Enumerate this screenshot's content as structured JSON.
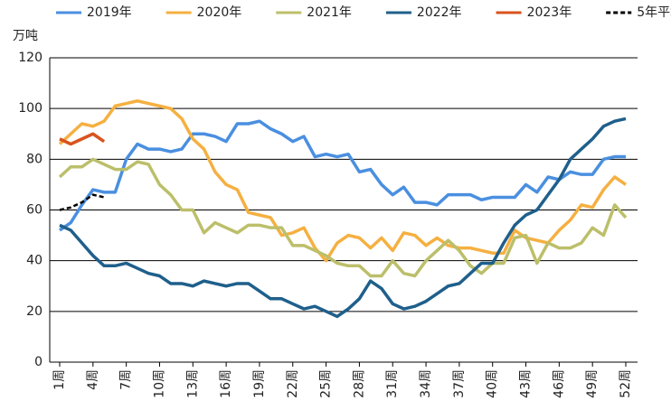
{
  "chart_data": {
    "type": "line",
    "y_label": "万吨",
    "categories": [
      "1周",
      null,
      null,
      "4周",
      null,
      null,
      "7周",
      null,
      null,
      "10周",
      null,
      null,
      "13周",
      null,
      null,
      "16周",
      null,
      null,
      "19周",
      null,
      null,
      "22周",
      null,
      null,
      "25周",
      null,
      null,
      "28周",
      null,
      null,
      "31周",
      null,
      null,
      "34周",
      null,
      null,
      "37周",
      null,
      null,
      "40周",
      null,
      null,
      "43周",
      null,
      null,
      "46周",
      null,
      null,
      "49周",
      null,
      null,
      "52周"
    ],
    "ylim": [
      0,
      120
    ],
    "yticks": [
      0,
      20,
      40,
      60,
      80,
      100,
      120
    ],
    "grid": true,
    "legend": "top",
    "series": [
      {
        "name": "2019年",
        "color": "#4a8fe0",
        "values": [
          52,
          55,
          62,
          68,
          67,
          67,
          80,
          86,
          84,
          84,
          83,
          84,
          90,
          90,
          89,
          87,
          94,
          94,
          95,
          92,
          90,
          87,
          89,
          81,
          82,
          81,
          82,
          75,
          76,
          70,
          66,
          69,
          63,
          63,
          62,
          66,
          66,
          66,
          64,
          65,
          65,
          65,
          70,
          67,
          73,
          72,
          75,
          74,
          74,
          80,
          81,
          81
        ]
      },
      {
        "name": "2020年",
        "color": "#f5b041",
        "values": [
          86,
          90,
          94,
          93,
          95,
          101,
          102,
          103,
          102,
          101,
          100,
          96,
          88,
          84,
          75,
          70,
          68,
          59,
          58,
          57,
          50,
          51,
          53,
          45,
          40,
          47,
          50,
          49,
          45,
          49,
          44,
          51,
          50,
          46,
          49,
          46,
          45,
          45,
          44,
          43,
          43,
          52,
          49,
          48,
          47,
          52,
          56,
          62,
          61,
          68,
          73,
          70
        ]
      },
      {
        "name": "2021年",
        "color": "#bcbf6a",
        "values": [
          73,
          77,
          77,
          80,
          78,
          76,
          76,
          79,
          78,
          70,
          66,
          60,
          60,
          51,
          55,
          53,
          51,
          54,
          54,
          53,
          53,
          46,
          46,
          44,
          42,
          39,
          38,
          38,
          34,
          34,
          40,
          35,
          34,
          40,
          44,
          48,
          44,
          38,
          35,
          39,
          39,
          49,
          50,
          39,
          47,
          45,
          45,
          47,
          53,
          50,
          62,
          57
        ]
      },
      {
        "name": "2022年",
        "color": "#1f5f8b",
        "values": [
          54,
          52,
          47,
          42,
          38,
          38,
          39,
          37,
          35,
          34,
          31,
          31,
          30,
          32,
          31,
          30,
          31,
          31,
          28,
          25,
          25,
          23,
          21,
          22,
          20,
          18,
          21,
          25,
          32,
          29,
          23,
          21,
          22,
          24,
          27,
          30,
          31,
          35,
          39,
          39,
          47,
          54,
          58,
          60,
          66,
          72,
          80,
          84,
          88,
          93,
          95,
          96
        ]
      },
      {
        "name": "2023年",
        "color": "#d9531e",
        "values": [
          88,
          86,
          88,
          90,
          87,
          null,
          null,
          null,
          null,
          null,
          null,
          null,
          null,
          null,
          null,
          null,
          null,
          null,
          null,
          null,
          null,
          null,
          null,
          null,
          null,
          null,
          null,
          null,
          null,
          null,
          null,
          null,
          null,
          null,
          null,
          null,
          null,
          null,
          null,
          null,
          null,
          null,
          null,
          null,
          null,
          null,
          null,
          null,
          null,
          null,
          null,
          null
        ]
      },
      {
        "name": "5年平均",
        "color": "#000000",
        "dashed": true,
        "values": [
          60,
          61,
          63,
          66,
          65,
          null,
          null,
          null,
          null,
          null,
          null,
          null,
          null,
          null,
          null,
          null,
          null,
          null,
          null,
          null,
          null,
          null,
          null,
          null,
          null,
          null,
          null,
          null,
          null,
          null,
          null,
          null,
          null,
          null,
          null,
          null,
          null,
          null,
          null,
          null,
          null,
          null,
          null,
          null,
          null,
          null,
          null,
          null,
          null,
          null,
          null,
          null
        ]
      }
    ]
  }
}
